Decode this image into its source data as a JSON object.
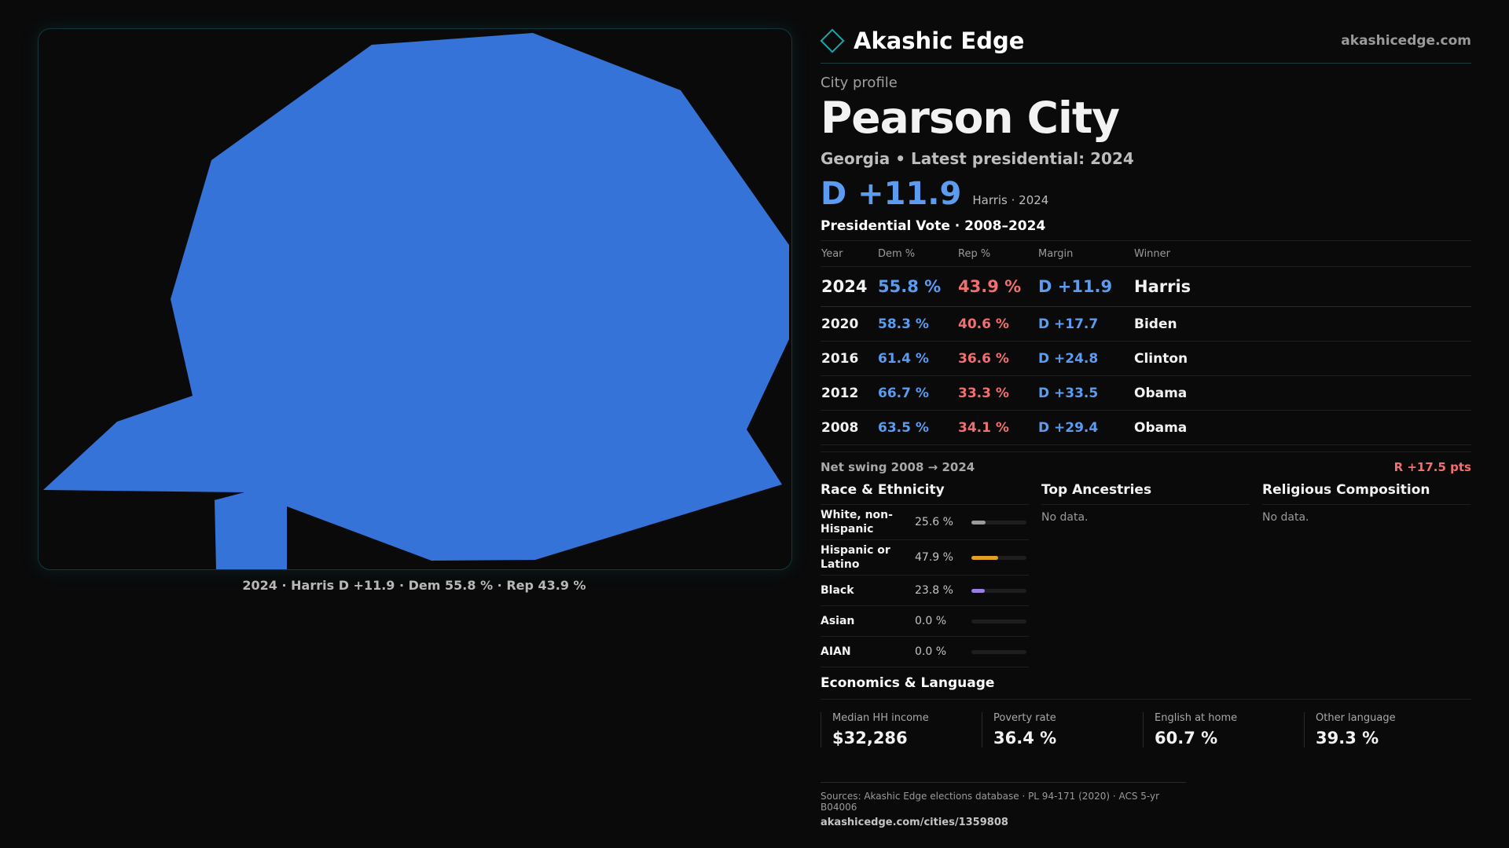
{
  "map": {
    "caption": "2024 · Harris D +11.9 · Dem 55.8 % · Rep 43.9 %",
    "fill_color": "#3573d9"
  },
  "header": {
    "brand_name": "Akashic Edge",
    "site_url": "akashicedge.com"
  },
  "profile": {
    "label": "City profile",
    "city": "Pearson City",
    "subtitle": "Georgia • Latest presidential: 2024",
    "margin": "D +11.9",
    "margin_sub": "Harris · 2024"
  },
  "vote_table": {
    "title": "Presidential Vote · 2008–2024",
    "headers": [
      "Year",
      "Dem %",
      "Rep %",
      "Margin",
      "Winner"
    ],
    "rows": [
      {
        "year": "2024",
        "dem": "55.8 %",
        "rep": "43.9 %",
        "margin": "D +11.9",
        "winner": "Harris"
      },
      {
        "year": "2020",
        "dem": "58.3 %",
        "rep": "40.6 %",
        "margin": "D +17.7",
        "winner": "Biden"
      },
      {
        "year": "2016",
        "dem": "61.4 %",
        "rep": "36.6 %",
        "margin": "D +24.8",
        "winner": "Clinton"
      },
      {
        "year": "2012",
        "dem": "66.7 %",
        "rep": "33.3 %",
        "margin": "D +33.5",
        "winner": "Obama"
      },
      {
        "year": "2008",
        "dem": "63.5 %",
        "rep": "34.1 %",
        "margin": "D +29.4",
        "winner": "Obama"
      }
    ],
    "swing_label": "Net swing 2008 → 2024",
    "swing_value": "R +17.5 pts"
  },
  "race": {
    "title": "Race & Ethnicity",
    "items": [
      {
        "name": "White, non-Hispanic",
        "value": "25.6 %",
        "fraction": 0.256,
        "color": "#9a9a9a"
      },
      {
        "name": "Hispanic or Latino",
        "value": "47.9 %",
        "fraction": 0.479,
        "color": "#e0a020"
      },
      {
        "name": "Black",
        "value": "23.8 %",
        "fraction": 0.238,
        "color": "#9a7ee0"
      },
      {
        "name": "Asian",
        "value": "0.0 %",
        "fraction": 0.0,
        "color": "#5b9bf0"
      },
      {
        "name": "AIAN",
        "value": "0.0 %",
        "fraction": 0.0,
        "color": "#5b9bf0"
      }
    ]
  },
  "ancestries": {
    "title": "Top Ancestries",
    "empty": "No data."
  },
  "religion": {
    "title": "Religious Composition",
    "empty": "No data."
  },
  "economics": {
    "title": "Economics & Language",
    "items": [
      {
        "label": "Median HH income",
        "value": "$32,286"
      },
      {
        "label": "Poverty rate",
        "value": "36.4 %"
      },
      {
        "label": "English at home",
        "value": "60.7 %"
      },
      {
        "label": "Other language",
        "value": "39.3 %"
      }
    ]
  },
  "footer": {
    "sources": "Sources: Akashic Edge elections database · PL 94-171 (2020) · ACS 5-yr B04006",
    "url": "akashicedge.com/cities/1359808"
  }
}
